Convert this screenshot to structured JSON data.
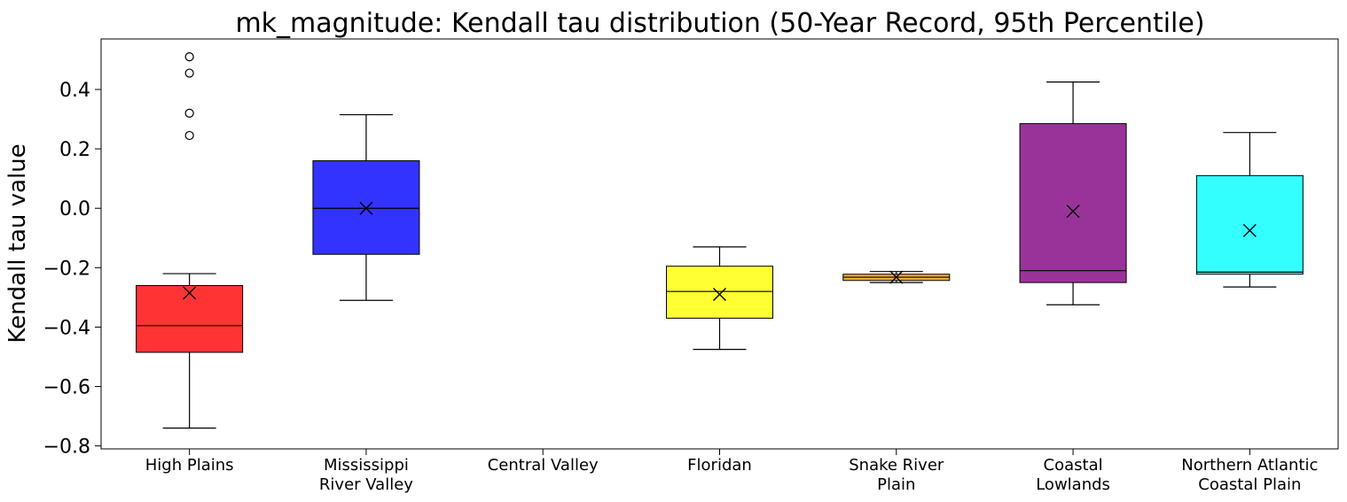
{
  "chart_data": {
    "type": "box",
    "title": "mk_magnitude: Kendall tau distribution (50-Year Record, 95th Percentile)",
    "xlabel": "",
    "ylabel": "Kendall tau value",
    "ylim": [
      -0.81,
      0.57
    ],
    "yticks": [
      -0.8,
      -0.6,
      -0.4,
      -0.2,
      0.0,
      0.2,
      0.4
    ],
    "ytick_labels": [
      "−0.8",
      "−0.6",
      "−0.4",
      "−0.2",
      "0.0",
      "0.2",
      "0.4"
    ],
    "grid": false,
    "legend": "none",
    "mean_marker": "x",
    "categories": [
      {
        "label_lines": [
          "High Plains"
        ],
        "color": "#ff0000",
        "whisker_low": -0.74,
        "q1": -0.485,
        "median": -0.395,
        "q3": -0.26,
        "whisker_high": -0.22,
        "mean": -0.285,
        "outliers": [
          0.245,
          0.32,
          0.455,
          0.51
        ]
      },
      {
        "label_lines": [
          "Mississippi",
          "River Valley"
        ],
        "color": "#0000ff",
        "whisker_low": -0.31,
        "q1": -0.155,
        "median": 0.0,
        "q3": 0.16,
        "whisker_high": 0.315,
        "mean": 0.0,
        "outliers": []
      },
      {
        "label_lines": [
          "Central Valley"
        ],
        "color": "#000000",
        "empty": true,
        "outliers": []
      },
      {
        "label_lines": [
          "Floridan"
        ],
        "color": "#ffff00",
        "whisker_low": -0.475,
        "q1": -0.37,
        "median": -0.28,
        "q3": -0.195,
        "whisker_high": -0.13,
        "mean": -0.29,
        "outliers": []
      },
      {
        "label_lines": [
          "Snake River",
          "Plain"
        ],
        "color": "#ff9900",
        "whisker_low": -0.25,
        "q1": -0.243,
        "median": -0.232,
        "q3": -0.222,
        "whisker_high": -0.213,
        "mean": -0.232,
        "outliers": []
      },
      {
        "label_lines": [
          "Coastal",
          "Lowlands"
        ],
        "color": "#800080",
        "whisker_low": -0.325,
        "q1": -0.25,
        "median": -0.21,
        "q3": 0.285,
        "whisker_high": 0.425,
        "mean": -0.01,
        "outliers": []
      },
      {
        "label_lines": [
          "Northern Atlantic",
          "Coastal Plain"
        ],
        "color": "#00ffff",
        "whisker_low": -0.265,
        "q1": -0.222,
        "median": -0.215,
        "q3": 0.11,
        "whisker_high": 0.255,
        "mean": -0.075,
        "outliers": []
      }
    ]
  }
}
